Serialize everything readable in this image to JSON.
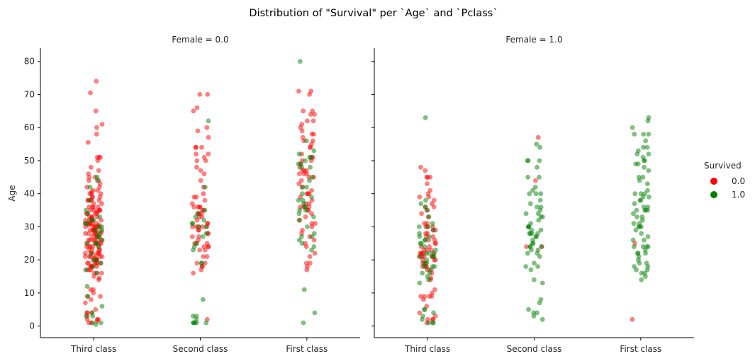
{
  "chart_data": {
    "type": "scatter",
    "subtype": "strip",
    "title": "Distribution of \"Survival\" per `Age` and `Pclass`",
    "ylabel": "Age",
    "ylim": [
      -3.5,
      84
    ],
    "yticks": [
      0,
      10,
      20,
      30,
      40,
      50,
      60,
      70,
      80
    ],
    "categories": [
      "Third class",
      "Second class",
      "First class"
    ],
    "colors": {
      "0.0": "#ff0000",
      "1.0": "#008000"
    },
    "point_alpha": 0.5,
    "legend": {
      "title": "Survived",
      "placement": "center-right",
      "entries": [
        "0.0",
        "1.0"
      ]
    },
    "grid": false,
    "panels": [
      {
        "title": "Female = 0.0",
        "series": [
          {
            "name": "0.0",
            "groups": [
              {
                "category": "Third class",
                "ages": [
                  74,
                  70.5,
                  65,
                  61,
                  60,
                  58,
                  55.5,
                  51,
                  51,
                  51,
                  50,
                  48,
                  47,
                  46,
                  45,
                  45,
                  44,
                  44,
                  43,
                  42,
                  42,
                  41,
                  41,
                  40.5,
                  40,
                  40,
                  40,
                  39,
                  39,
                  39,
                  38,
                  38,
                  38,
                  38,
                  38,
                  37,
                  37,
                  36,
                  36,
                  36,
                  36,
                  35,
                  35,
                  35,
                  35,
                  35,
                  34.5,
                  34,
                  34,
                  34,
                  34,
                  33,
                  33,
                  33,
                  33,
                  32.5,
                  32,
                  32,
                  32,
                  32,
                  32,
                  31,
                  31,
                  31,
                  31,
                  31,
                  31,
                  30.5,
                  30.5,
                  30,
                  30,
                  30,
                  30,
                  30,
                  30,
                  29,
                  29,
                  29,
                  29,
                  29,
                  29,
                  28.5,
                  28,
                  28,
                  28,
                  28,
                  28,
                  28,
                  27,
                  27,
                  27,
                  27,
                  26,
                  26,
                  26,
                  26,
                  26,
                  26,
                  25,
                  25,
                  25,
                  25,
                  25,
                  25,
                  24,
                  24,
                  24,
                  24,
                  24,
                  23,
                  23,
                  23,
                  23,
                  22,
                  22,
                  22,
                  22,
                  22,
                  22,
                  21,
                  21,
                  21,
                  21,
                  21,
                  21,
                  20.5,
                  20,
                  20,
                  20,
                  20,
                  20,
                  19,
                  19,
                  19,
                  19,
                  19,
                  19,
                  18,
                  18,
                  18,
                  18,
                  18,
                  17,
                  17,
                  17,
                  16,
                  16,
                  16,
                  15,
                  14.5,
                  14,
                  11,
                  11,
                  10,
                  9,
                  9,
                  8,
                  7,
                  5,
                  4,
                  4,
                  4,
                  3,
                  2,
                  2,
                  2,
                  1.5,
                  1,
                  1
                ]
              },
              {
                "category": "Second class",
                "ages": [
                  70,
                  70,
                  66,
                  65,
                  60,
                  59,
                  57,
                  54,
                  54,
                  54,
                  52,
                  52,
                  51,
                  50,
                  50,
                  48,
                  47,
                  46,
                  44,
                  42,
                  40,
                  39,
                  39,
                  38,
                  37,
                  36,
                  36,
                  36,
                  36,
                  35,
                  35,
                  34,
                  34,
                  34,
                  33,
                  33,
                  32,
                  31,
                  31,
                  30,
                  30,
                  30,
                  30,
                  30,
                  29,
                  29,
                  28,
                  28,
                  27,
                  27,
                  26,
                  25,
                  25,
                  25,
                  24,
                  24,
                  24,
                  23,
                  23,
                  21,
                  21,
                  19,
                  19,
                  18,
                  18,
                  17,
                  16,
                  2
                ]
              },
              {
                "category": "First class",
                "ages": [
                  71,
                  71,
                  70,
                  65,
                  65,
                  64,
                  64,
                  62,
                  62,
                  61,
                  60,
                  59,
                  58,
                  58,
                  57,
                  56,
                  56,
                  55,
                  54,
                  54,
                  52,
                  51,
                  51,
                  50,
                  50,
                  49,
                  48,
                  47,
                  47,
                  47,
                  46,
                  46,
                  46,
                  45,
                  45,
                  44,
                  43,
                  42,
                  41,
                  40,
                  40,
                  40,
                  39,
                  38,
                  37,
                  37,
                  36,
                  36,
                  36,
                  35,
                  35,
                  34,
                  33,
                  32,
                  31,
                  31,
                  30,
                  29,
                  28,
                  27,
                  26,
                  25,
                  24,
                  22,
                  21,
                  19,
                  19,
                  18,
                  17
                ]
              }
            ]
          },
          {
            "name": "1.0",
            "groups": [
              {
                "category": "Third class",
                "ages": [
                  45,
                  44,
                  42,
                  38,
                  35,
                  34,
                  33,
                  32,
                  32,
                  31,
                  31,
                  30,
                  30,
                  29,
                  29,
                  28,
                  27,
                  27,
                  26,
                  25,
                  25,
                  25,
                  24,
                  22,
                  20,
                  20,
                  19,
                  18,
                  17,
                  16,
                  12,
                  9,
                  6,
                  4,
                  3,
                  3,
                  1,
                  1,
                  0.5
                ]
              },
              {
                "category": "Second class",
                "ages": [
                  62,
                  42,
                  35,
                  34,
                  33,
                  32,
                  31,
                  31,
                  30,
                  30,
                  28,
                  27,
                  25,
                  24,
                  23,
                  19,
                  19,
                  8,
                  3,
                  3,
                  2,
                  1,
                  1,
                  1,
                  1,
                  1
                ]
              },
              {
                "category": "First class",
                "ages": [
                  80,
                  56,
                  53,
                  52,
                  51,
                  51,
                  50,
                  49,
                  49,
                  48,
                  48,
                  45,
                  44,
                  42,
                  42,
                  40,
                  39,
                  38,
                  38,
                  37,
                  36,
                  36,
                  35,
                  35,
                  34,
                  33,
                  32,
                  30,
                  28,
                  27,
                  27,
                  26,
                  25,
                  24,
                  23,
                  11,
                  4,
                  1
                ]
              }
            ]
          }
        ]
      },
      {
        "title": "Female = 1.0",
        "series": [
          {
            "name": "0.0",
            "groups": [
              {
                "category": "Third class",
                "ages": [
                  48,
                  47,
                  45,
                  45,
                  45,
                  43,
                  41,
                  40,
                  39,
                  39,
                  38,
                  37,
                  36,
                  36,
                  35,
                  34,
                  33,
                  31,
                  31,
                  30,
                  30,
                  30,
                  29,
                  29,
                  28,
                  28,
                  27,
                  27,
                  26,
                  26,
                  25,
                  25,
                  24,
                  24,
                  23,
                  23,
                  23,
                  22,
                  22,
                  22,
                  22,
                  22,
                  21,
                  21,
                  21,
                  21,
                  21,
                  20,
                  20,
                  20,
                  19,
                  19,
                  18,
                  18,
                  18,
                  17,
                  17,
                  16,
                  14,
                  14.5,
                  11,
                  10,
                  9,
                  9,
                  9,
                  9,
                  8,
                  6,
                  4,
                  3,
                  2,
                  2,
                  2,
                  1
                ]
              },
              {
                "category": "Second class",
                "ages": [
                  57,
                  44,
                  24,
                  24
                ]
              },
              {
                "category": "First class",
                "ages": [
                  25,
                  2
                ]
              }
            ]
          },
          {
            "name": "1.0",
            "groups": [
              {
                "category": "Third class",
                "ages": [
                  63,
                  38,
                  37,
                  36,
                  35,
                  33,
                  31,
                  30,
                  30,
                  29,
                  28,
                  27,
                  27,
                  26,
                  26,
                  25,
                  25,
                  24,
                  23,
                  22,
                  22,
                  22,
                  21,
                  21,
                  21,
                  20,
                  19,
                  19,
                  18,
                  18,
                  18,
                  17,
                  16,
                  16,
                  15,
                  14,
                  13,
                  5,
                  5,
                  4,
                  3,
                  2,
                  1,
                  1,
                  1
                ]
              },
              {
                "category": "Second class",
                "ages": [
                  55,
                  54,
                  50,
                  50,
                  50,
                  48,
                  45,
                  45,
                  42,
                  41,
                  40,
                  40,
                  40,
                  38,
                  37,
                  36,
                  36,
                  35,
                  34,
                  34,
                  33,
                  33,
                  32,
                  31,
                  30,
                  30,
                  30,
                  29,
                  29,
                  28,
                  28,
                  28,
                  28,
                  27,
                  27,
                  26,
                  25,
                  25,
                  24,
                  24,
                  24,
                  23,
                  23,
                  22,
                  22,
                  21,
                  19,
                  18,
                  18,
                  17,
                  14,
                  13,
                  8,
                  7,
                  5,
                  4,
                  4,
                  3,
                  2
                ]
              },
              {
                "category": "First class",
                "ages": [
                  63,
                  62,
                  60,
                  58,
                  58,
                  58,
                  56,
                  54,
                  54,
                  53,
                  52,
                  52,
                  51,
                  50,
                  50,
                  49,
                  49,
                  48,
                  47,
                  45,
                  45,
                  44,
                  43,
                  41,
                  40,
                  40,
                  40,
                  39,
                  39,
                  38,
                  38,
                  37,
                  36,
                  36,
                  35,
                  35,
                  35,
                  35,
                  34,
                  33,
                  33,
                  32,
                  31,
                  31,
                  30,
                  30,
                  30,
                  29,
                  28,
                  27,
                  26,
                  26,
                  24,
                  24,
                  24,
                  24,
                  23,
                  22,
                  22,
                  22,
                  21,
                  20,
                  19,
                  19,
                  18,
                  18,
                  17,
                  17,
                  16,
                  16,
                  15,
                  14
                ]
              }
            ]
          }
        ]
      }
    ]
  }
}
